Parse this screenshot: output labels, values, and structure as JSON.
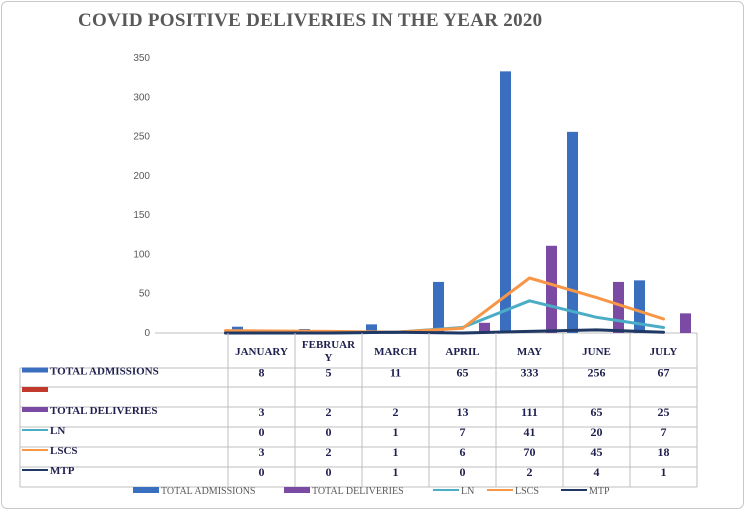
{
  "chart_data": {
    "type": "bar",
    "title": "COVID POSITIVE DELIVERIES IN THE YEAR 2020",
    "categories": [
      "JANUARY",
      "FEBRUARY",
      "MARCH",
      "APRIL",
      "MAY",
      "JUNE",
      "JULY"
    ],
    "category_labels": [
      [
        "JANUARY"
      ],
      [
        "FEBRUAR",
        "Y"
      ],
      [
        "MARCH"
      ],
      [
        "APRIL"
      ],
      [
        "MAY"
      ],
      [
        "JUNE"
      ],
      [
        "JULY"
      ]
    ],
    "ylim": [
      0,
      350
    ],
    "yticks": [
      0,
      50,
      100,
      150,
      200,
      250,
      300,
      350
    ],
    "grid": false,
    "legend_position": "bottom",
    "series": [
      {
        "name": "TOTAL ADMISSIONS",
        "kind": "bar",
        "color": "#3a6fbf",
        "values": [
          8,
          5,
          11,
          65,
          333,
          256,
          67
        ]
      },
      {
        "name": "",
        "kind": "bar",
        "color": "#c0392b",
        "values": [
          null,
          null,
          null,
          null,
          null,
          null,
          null
        ]
      },
      {
        "name": "TOTAL DELIVERIES",
        "kind": "bar",
        "color": "#7b4aa3",
        "values": [
          3,
          2,
          2,
          13,
          111,
          65,
          25
        ]
      },
      {
        "name": "LN",
        "kind": "line",
        "color": "#4bacc6",
        "values": [
          0,
          0,
          1,
          7,
          41,
          20,
          7
        ]
      },
      {
        "name": "LSCS",
        "kind": "line",
        "color": "#f79646",
        "values": [
          3,
          2,
          1,
          6,
          70,
          45,
          18
        ]
      },
      {
        "name": "MTP",
        "kind": "line",
        "color": "#1f3864",
        "values": [
          0,
          0,
          1,
          0,
          2,
          4,
          1
        ]
      }
    ],
    "legend": [
      {
        "name": "TOTAL ADMISSIONS",
        "kind": "bar",
        "color": "#3a6fbf"
      },
      {
        "name": "TOTAL DELIVERIES",
        "kind": "bar",
        "color": "#7b4aa3"
      },
      {
        "name": "LN",
        "kind": "line",
        "color": "#4bacc6"
      },
      {
        "name": "LSCS",
        "kind": "line",
        "color": "#f79646"
      },
      {
        "name": "MTP",
        "kind": "line",
        "color": "#1f3864"
      }
    ]
  }
}
